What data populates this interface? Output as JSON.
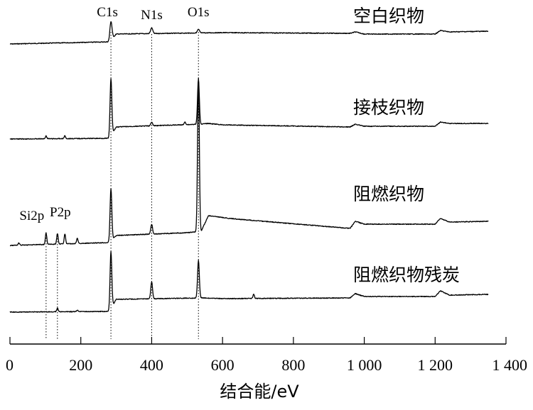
{
  "chart_data": {
    "type": "line",
    "title": "",
    "xlabel": "结合能/eV",
    "ylabel": "",
    "xlim": [
      0,
      1400
    ],
    "x_ticks": [
      "0",
      "200",
      "400",
      "600",
      "800",
      "1 000",
      "1 200",
      "1 400"
    ],
    "y_ticks_shown": false,
    "grid": false,
    "series": [
      {
        "name": "空白织物"
      },
      {
        "name": "接枝织物"
      },
      {
        "name": "阻燃织物"
      },
      {
        "name": "阻燃织物残炭"
      }
    ],
    "peak_annotations": [
      {
        "label": "C1s",
        "x": 285
      },
      {
        "label": "N1s",
        "x": 400
      },
      {
        "label": "O1s",
        "x": 532
      },
      {
        "label": "Si2p",
        "x": 102
      },
      {
        "label": "P2p",
        "x": 134
      }
    ]
  }
}
